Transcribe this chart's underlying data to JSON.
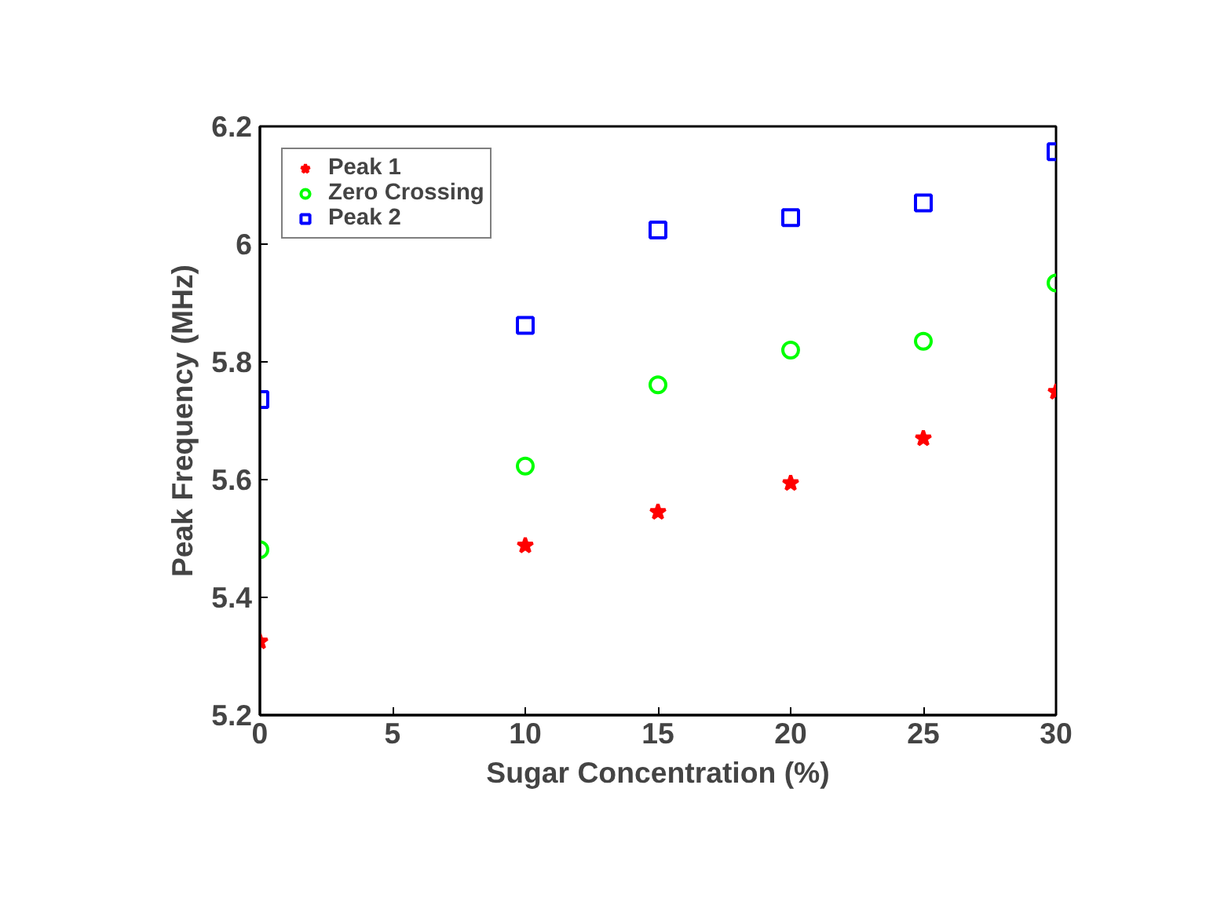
{
  "chart_data": {
    "type": "scatter",
    "xlabel": "Sugar Concentration (%)",
    "ylabel": "Peak Frequency (MHz)",
    "x": [
      0,
      10,
      15,
      20,
      25,
      30
    ],
    "series": [
      {
        "name": "Peak 1",
        "color": "#ff0000",
        "marker": "star",
        "values": [
          5.325,
          5.488,
          5.545,
          5.594,
          5.67,
          5.749
        ]
      },
      {
        "name": "Zero Crossing",
        "color": "#00ff00",
        "marker": "circle",
        "values": [
          5.481,
          5.623,
          5.761,
          5.82,
          5.835,
          5.934
        ]
      },
      {
        "name": "Peak 2",
        "color": "#0000ff",
        "marker": "square",
        "values": [
          5.736,
          5.862,
          6.024,
          6.045,
          6.07,
          6.157
        ]
      }
    ],
    "xlim": [
      0,
      30
    ],
    "ylim": [
      5.2,
      6.2
    ],
    "xticks": [
      0,
      5,
      10,
      15,
      20,
      25,
      30
    ],
    "yticks": [
      5.2,
      5.4,
      5.6,
      5.8,
      6,
      6.2
    ],
    "grid": false,
    "legend": "top left"
  }
}
